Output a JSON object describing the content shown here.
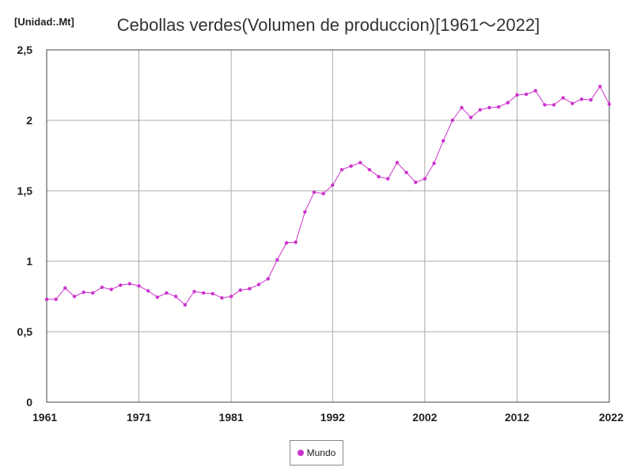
{
  "chart_data": {
    "type": "line",
    "title": "Cebollas verdes(Volumen de produccion)[1961～2022]",
    "unit_label": "[Unidad:.Mt]",
    "ylim": [
      0,
      2.5
    ],
    "xlim": [
      1961,
      2022
    ],
    "y_ticks": [
      {
        "value": 0,
        "label": "0"
      },
      {
        "value": 0.5,
        "label": "0,5"
      },
      {
        "value": 1,
        "label": "1"
      },
      {
        "value": 1.5,
        "label": "1,5"
      },
      {
        "value": 2,
        "label": "2"
      },
      {
        "value": 2.5,
        "label": "2,5"
      }
    ],
    "x_ticks": [
      {
        "value": 1961,
        "label": "1961"
      },
      {
        "value": 1971,
        "label": "1971"
      },
      {
        "value": 1981,
        "label": "1981"
      },
      {
        "value": 1992,
        "label": "1992"
      },
      {
        "value": 2002,
        "label": "2002"
      },
      {
        "value": 2012,
        "label": "2012"
      },
      {
        "value": 2022,
        "label": "2022"
      }
    ],
    "grid": true,
    "legend_position": "bottom-center",
    "series": [
      {
        "name": "Mundo",
        "color": "#cc33cc",
        "x": [
          1961,
          1962,
          1963,
          1964,
          1965,
          1966,
          1967,
          1968,
          1969,
          1970,
          1971,
          1972,
          1973,
          1974,
          1975,
          1976,
          1977,
          1978,
          1979,
          1980,
          1981,
          1982,
          1983,
          1984,
          1985,
          1986,
          1987,
          1988,
          1989,
          1990,
          1991,
          1992,
          1993,
          1994,
          1995,
          1996,
          1997,
          1998,
          1999,
          2000,
          2001,
          2002,
          2003,
          2004,
          2005,
          2006,
          2007,
          2008,
          2009,
          2010,
          2011,
          2012,
          2013,
          2014,
          2015,
          2016,
          2017,
          2018,
          2019,
          2020,
          2021,
          2022
        ],
        "values": [
          0.73,
          0.73,
          0.81,
          0.75,
          0.78,
          0.775,
          0.815,
          0.8,
          0.83,
          0.84,
          0.825,
          0.79,
          0.745,
          0.775,
          0.75,
          0.69,
          0.785,
          0.775,
          0.77,
          0.74,
          0.75,
          0.795,
          0.805,
          0.835,
          0.875,
          1.01,
          1.13,
          1.135,
          1.35,
          1.49,
          1.48,
          1.54,
          1.65,
          1.675,
          1.7,
          1.65,
          1.6,
          1.585,
          1.7,
          1.63,
          1.56,
          1.585,
          1.695,
          1.855,
          2.0,
          2.09,
          2.02,
          2.075,
          2.09,
          2.095,
          2.125,
          2.18,
          2.185,
          2.21,
          2.11,
          2.11,
          2.16,
          2.12,
          2.15,
          2.145,
          2.24,
          2.115
        ]
      }
    ]
  }
}
